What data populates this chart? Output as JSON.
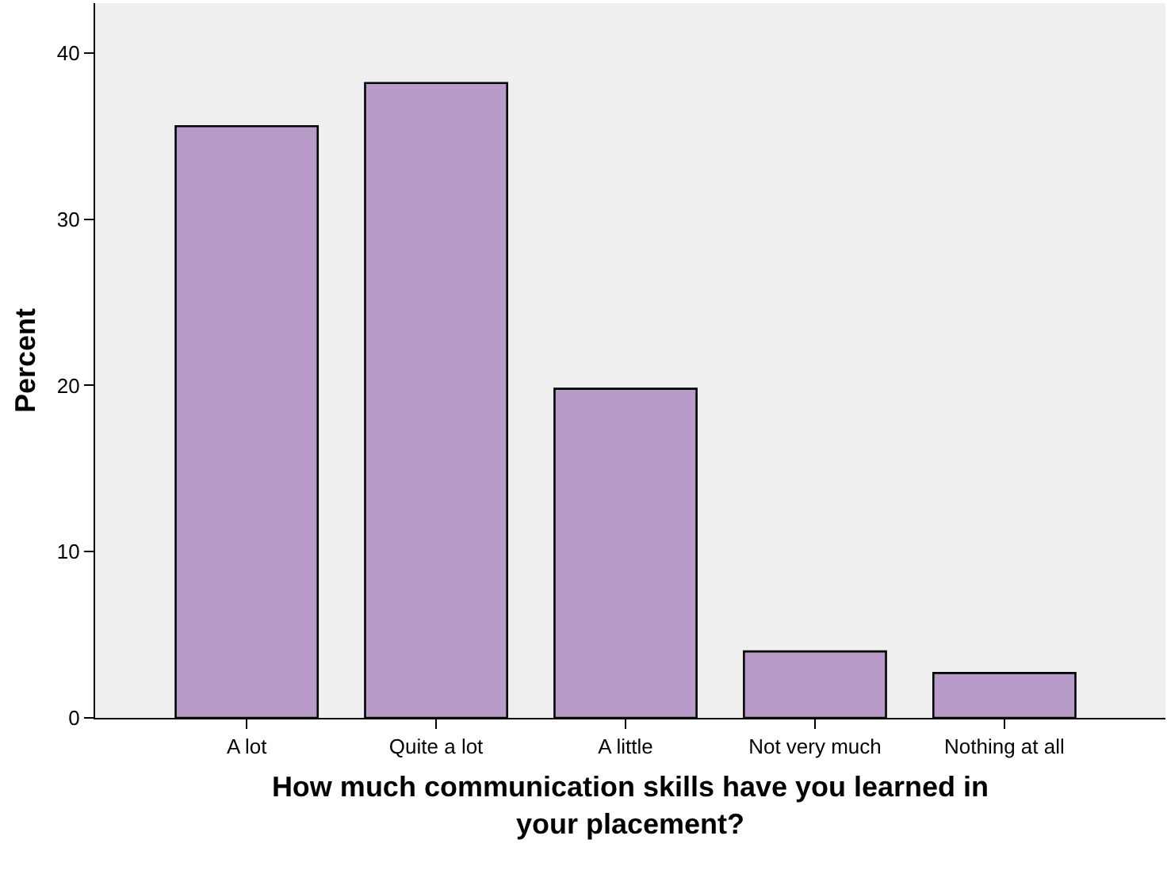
{
  "chart_data": {
    "type": "bar",
    "xlabel": "How much communication skills have you learned in your placement?",
    "ylabel": "Percent",
    "categories": [
      "A lot",
      "Quite a lot",
      "A little",
      "Not very much",
      "Nothing at all"
    ],
    "values": [
      35.6,
      38.2,
      19.8,
      4.0,
      2.7
    ],
    "color": "#b89bc9",
    "ylim": [
      0,
      43
    ],
    "yticks": [
      0,
      10,
      20,
      30,
      40
    ],
    "grid": false,
    "legend": false
  }
}
